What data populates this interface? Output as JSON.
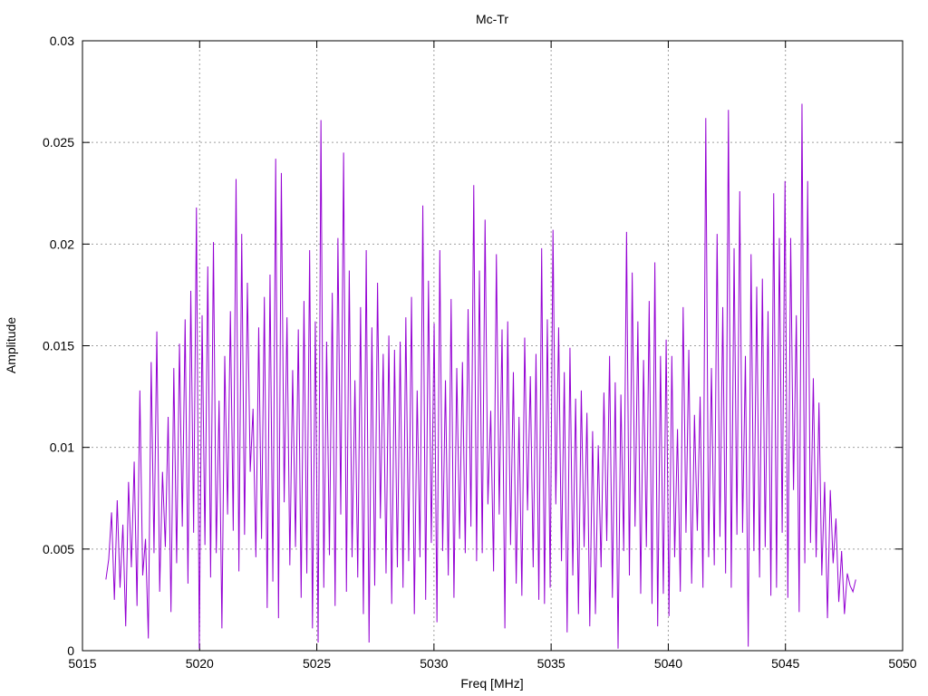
{
  "chart_data": {
    "type": "line",
    "title": "Mc-Tr",
    "xlabel": "Freq [MHz]",
    "ylabel": "Amplitude",
    "xlim": [
      5015,
      5050
    ],
    "ylim": [
      0,
      0.03
    ],
    "x_ticks": [
      "5015",
      "5020",
      "5025",
      "5030",
      "5035",
      "5040",
      "5045",
      "5050"
    ],
    "y_ticks": [
      "0",
      "0.005",
      "0.01",
      "0.015",
      "0.02",
      "0.025",
      "0.03"
    ],
    "grid": true,
    "series_color": "#9400d3",
    "series": [
      {
        "x_start": 5016,
        "x_end": 5048,
        "values": [
          0.0035,
          0.0045,
          0.0068,
          0.0025,
          0.0074,
          0.0031,
          0.0062,
          0.0012,
          0.0083,
          0.0041,
          0.0093,
          0.0022,
          0.0128,
          0.0037,
          0.0055,
          0.0006,
          0.0142,
          0.0048,
          0.0157,
          0.0029,
          0.0088,
          0.0051,
          0.0115,
          0.0019,
          0.0139,
          0.0043,
          0.0151,
          0.0061,
          0.0163,
          0.0033,
          0.0177,
          0.0058,
          0.0218,
          0.0001,
          0.0165,
          0.0052,
          0.0189,
          0.0036,
          0.0201,
          0.0048,
          0.0123,
          0.0011,
          0.0145,
          0.0067,
          0.0167,
          0.0059,
          0.0232,
          0.0039,
          0.0205,
          0.0057,
          0.0181,
          0.0088,
          0.0119,
          0.0046,
          0.0159,
          0.0055,
          0.0174,
          0.0021,
          0.0185,
          0.0034,
          0.0242,
          0.0016,
          0.0235,
          0.0073,
          0.0164,
          0.0042,
          0.0138,
          0.0051,
          0.0158,
          0.0026,
          0.0172,
          0.0038,
          0.0197,
          0.0011,
          0.0162,
          0.0004,
          0.0261,
          0.0031,
          0.0152,
          0.0047,
          0.0176,
          0.0022,
          0.0203,
          0.0067,
          0.0245,
          0.0029,
          0.0187,
          0.0046,
          0.0133,
          0.0036,
          0.0169,
          0.0018,
          0.0197,
          0.0004,
          0.0159,
          0.0032,
          0.0181,
          0.0065,
          0.0146,
          0.0038,
          0.0155,
          0.0023,
          0.0148,
          0.0041,
          0.0152,
          0.0031,
          0.0164,
          0.0044,
          0.0174,
          0.0018,
          0.0128,
          0.0046,
          0.0219,
          0.0025,
          0.0182,
          0.0053,
          0.0161,
          0.0014,
          0.0197,
          0.0049,
          0.0133,
          0.0037,
          0.0173,
          0.0026,
          0.0139,
          0.0055,
          0.0142,
          0.0048,
          0.0168,
          0.0061,
          0.0229,
          0.0044,
          0.0187,
          0.0048,
          0.0212,
          0.0072,
          0.0118,
          0.0039,
          0.0195,
          0.0067,
          0.0158,
          0.0011,
          0.0162,
          0.0052,
          0.0137,
          0.0033,
          0.0115,
          0.0027,
          0.0154,
          0.0069,
          0.0135,
          0.0041,
          0.0146,
          0.0025,
          0.0198,
          0.0023,
          0.0163,
          0.0031,
          0.0207,
          0.0072,
          0.0159,
          0.0044,
          0.0137,
          0.0009,
          0.0149,
          0.0037,
          0.0124,
          0.0018,
          0.0128,
          0.0051,
          0.0117,
          0.0012,
          0.0108,
          0.0018,
          0.0101,
          0.0041,
          0.0127,
          0.0054,
          0.0145,
          0.0026,
          0.0132,
          0.0001,
          0.0126,
          0.0049,
          0.0206,
          0.0037,
          0.0186,
          0.0061,
          0.0162,
          0.0028,
          0.0143,
          0.0051,
          0.0172,
          0.0023,
          0.0191,
          0.0012,
          0.0145,
          0.0028,
          0.0153,
          0.0017,
          0.0145,
          0.0046,
          0.0109,
          0.0029,
          0.0169,
          0.0058,
          0.0148,
          0.0033,
          0.0116,
          0.0059,
          0.0125,
          0.0031,
          0.0262,
          0.0046,
          0.0139,
          0.0042,
          0.0205,
          0.0056,
          0.0169,
          0.0038,
          0.0266,
          0.0031,
          0.0198,
          0.0057,
          0.0226,
          0.0058,
          0.0145,
          0.0002,
          0.0195,
          0.0049,
          0.0179,
          0.0036,
          0.0183,
          0.0051,
          0.0167,
          0.0027,
          0.0225,
          0.0031,
          0.0203,
          0.0058,
          0.0231,
          0.0026,
          0.0203,
          0.0079,
          0.0165,
          0.0019,
          0.0269,
          0.0043,
          0.0231,
          0.0053,
          0.0134,
          0.0046,
          0.0122,
          0.0037,
          0.0083,
          0.0016,
          0.0079,
          0.0043,
          0.0065,
          0.0024,
          0.0049,
          0.0018,
          0.0038,
          0.0032,
          0.0029,
          0.0035
        ]
      }
    ]
  }
}
